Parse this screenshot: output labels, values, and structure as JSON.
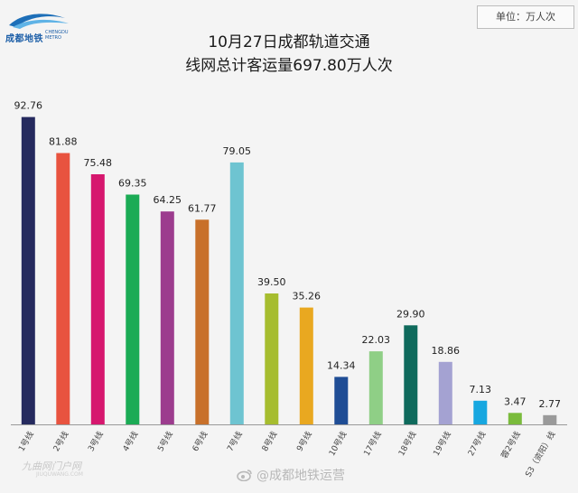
{
  "logo": {
    "cn": "成都地铁",
    "en": "CHENGDU METRO"
  },
  "unit_label": "单位：万人次",
  "title_lines": [
    "10月27日成都轨道交通",
    "线网总计客运量697.80万人次"
  ],
  "watermark": {
    "left": "九曲网门户网",
    "left_sub": "JIUQUWANG.COM",
    "weibo": "@成都地铁运营"
  },
  "chart_data": {
    "type": "bar",
    "categories": [
      "1号线",
      "2号线",
      "3号线",
      "4号线",
      "5号线",
      "6号线",
      "7号线",
      "8号线",
      "9号线",
      "10号线",
      "17号线",
      "18号线",
      "19号线",
      "27号线",
      "蓉2号线",
      "S3（资阳）线"
    ],
    "values": [
      92.76,
      81.88,
      75.48,
      69.35,
      64.25,
      61.77,
      79.05,
      39.5,
      35.26,
      14.34,
      22.03,
      29.9,
      18.86,
      7.13,
      3.47,
      2.77
    ],
    "value_labels": [
      "92.76",
      "81.88",
      "75.48",
      "69.35",
      "64.25",
      "61.77",
      "79.05",
      "39.50",
      "35.26",
      "14.34",
      "22.03",
      "29.90",
      "18.86",
      "7.13",
      "3.47",
      "2.77"
    ],
    "colors": [
      "#252a5e",
      "#e8533f",
      "#d6176e",
      "#1bab55",
      "#9c3c8e",
      "#c8702a",
      "#6ec4d1",
      "#a6bd2f",
      "#e9a820",
      "#1f4d95",
      "#8fcf86",
      "#0f6a5c",
      "#a4a2d2",
      "#17a7e0",
      "#7abb3c",
      "#9a9a9a"
    ],
    "ylim": [
      0,
      100
    ],
    "title": "10月27日成都轨道交通 线网总计客运量697.80万人次",
    "unit": "单位：万人次"
  }
}
